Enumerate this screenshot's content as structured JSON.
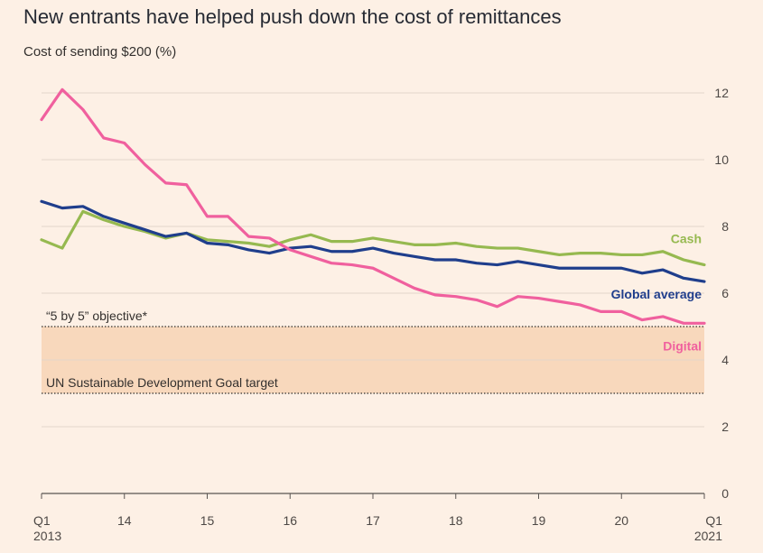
{
  "title": "New entrants have helped push down the cost of remittances",
  "subtitle": "Cost of sending $200 (%)",
  "chart_data": {
    "type": "line",
    "title": "New entrants have helped push down the cost of remittances",
    "ylabel": "Cost of sending $200 (%)",
    "xlabel": "",
    "ylim": [
      0,
      12
    ],
    "y_ticks": [
      0,
      2,
      4,
      6,
      8,
      10,
      12
    ],
    "grid": true,
    "x_tick_labels": [
      {
        "index": 0,
        "lines": [
          "Q1",
          "2013"
        ]
      },
      {
        "index": 4,
        "lines": [
          "14"
        ]
      },
      {
        "index": 8,
        "lines": [
          "15"
        ]
      },
      {
        "index": 12,
        "lines": [
          "16"
        ]
      },
      {
        "index": 16,
        "lines": [
          "17"
        ]
      },
      {
        "index": 20,
        "lines": [
          "18"
        ]
      },
      {
        "index": 24,
        "lines": [
          "19"
        ]
      },
      {
        "index": 28,
        "lines": [
          "20"
        ]
      },
      {
        "index": 32,
        "lines": [
          "Q1",
          "2021"
        ]
      }
    ],
    "x": [
      "Q1 2013",
      "Q2 2013",
      "Q3 2013",
      "Q4 2013",
      "Q1 2014",
      "Q2 2014",
      "Q3 2014",
      "Q4 2014",
      "Q1 2015",
      "Q2 2015",
      "Q3 2015",
      "Q4 2015",
      "Q1 2016",
      "Q2 2016",
      "Q3 2016",
      "Q4 2016",
      "Q1 2017",
      "Q2 2017",
      "Q3 2017",
      "Q4 2017",
      "Q1 2018",
      "Q2 2018",
      "Q3 2018",
      "Q4 2018",
      "Q1 2019",
      "Q2 2019",
      "Q3 2019",
      "Q4 2019",
      "Q1 2020",
      "Q2 2020",
      "Q3 2020",
      "Q4 2020",
      "Q1 2021"
    ],
    "series": [
      {
        "name": "Cash",
        "color": "#96b950",
        "values": [
          7.6,
          7.35,
          8.45,
          8.2,
          8.0,
          7.85,
          7.65,
          7.8,
          7.6,
          7.55,
          7.5,
          7.4,
          7.6,
          7.75,
          7.55,
          7.55,
          7.65,
          7.55,
          7.45,
          7.45,
          7.5,
          7.4,
          7.35,
          7.35,
          7.25,
          7.15,
          7.2,
          7.2,
          7.15,
          7.15,
          7.25,
          7.0,
          6.85
        ]
      },
      {
        "name": "Global average",
        "color": "#1f3e8c",
        "values": [
          8.75,
          8.55,
          8.6,
          8.3,
          8.1,
          7.9,
          7.7,
          7.8,
          7.5,
          7.45,
          7.3,
          7.2,
          7.35,
          7.4,
          7.25,
          7.25,
          7.35,
          7.2,
          7.1,
          7.0,
          7.0,
          6.9,
          6.85,
          6.95,
          6.85,
          6.75,
          6.75,
          6.75,
          6.75,
          6.6,
          6.7,
          6.45,
          6.35
        ]
      },
      {
        "name": "Digital",
        "color": "#f0609e",
        "values": [
          11.2,
          12.1,
          11.5,
          10.65,
          10.5,
          9.85,
          9.3,
          9.25,
          8.3,
          8.3,
          7.7,
          7.65,
          7.3,
          7.1,
          6.9,
          6.85,
          6.75,
          6.45,
          6.15,
          5.95,
          5.9,
          5.8,
          5.6,
          5.9,
          5.85,
          5.75,
          5.65,
          5.45,
          5.45,
          5.2,
          5.3,
          5.1,
          5.1
        ]
      }
    ],
    "annotations": [
      {
        "text": "“5 by 5” objective*",
        "y": 5
      },
      {
        "text": "UN Sustainable Development Goal target",
        "y": 3
      }
    ],
    "shaded_band": {
      "from": 3,
      "to": 5,
      "color": "#f8d8bc"
    }
  }
}
